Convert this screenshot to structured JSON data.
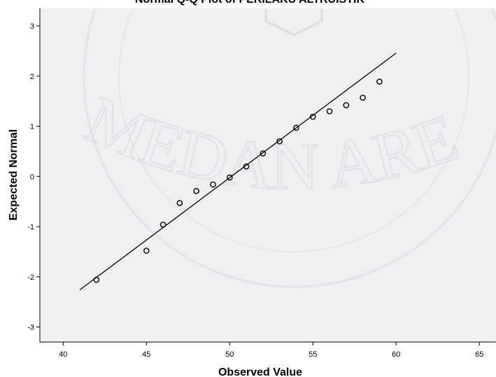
{
  "chart_data": {
    "type": "scatter",
    "title": "Normal Q-Q Plot of PERILAKU ALTRUISTIK",
    "xlabel": "Observed Value",
    "ylabel": "Expected Normal",
    "xlim": [
      38.6,
      66
    ],
    "ylim": [
      -3.3,
      3.35
    ],
    "x_ticks": [
      40,
      45,
      50,
      55,
      60,
      65
    ],
    "y_ticks": [
      -3,
      -2,
      -1,
      0,
      1,
      2,
      3
    ],
    "points": [
      {
        "x": 42,
        "y": -2.06
      },
      {
        "x": 45,
        "y": -1.48
      },
      {
        "x": 46,
        "y": -0.96
      },
      {
        "x": 47,
        "y": -0.53
      },
      {
        "x": 48,
        "y": -0.29
      },
      {
        "x": 49,
        "y": -0.16
      },
      {
        "x": 50,
        "y": -0.02
      },
      {
        "x": 51,
        "y": 0.2
      },
      {
        "x": 52,
        "y": 0.46
      },
      {
        "x": 53,
        "y": 0.7
      },
      {
        "x": 54,
        "y": 0.97
      },
      {
        "x": 55,
        "y": 1.19
      },
      {
        "x": 56,
        "y": 1.3
      },
      {
        "x": 57,
        "y": 1.42
      },
      {
        "x": 58,
        "y": 1.57
      },
      {
        "x": 59,
        "y": 1.89
      }
    ],
    "reference_line": {
      "x": [
        41,
        60
      ],
      "y": [
        -2.26,
        2.46
      ]
    },
    "grid": false,
    "colors": {
      "plot_background": "#f0f0f0",
      "marker": "#000000",
      "line": "#000000"
    }
  },
  "watermark": {
    "text": "MEDAN AREA"
  }
}
